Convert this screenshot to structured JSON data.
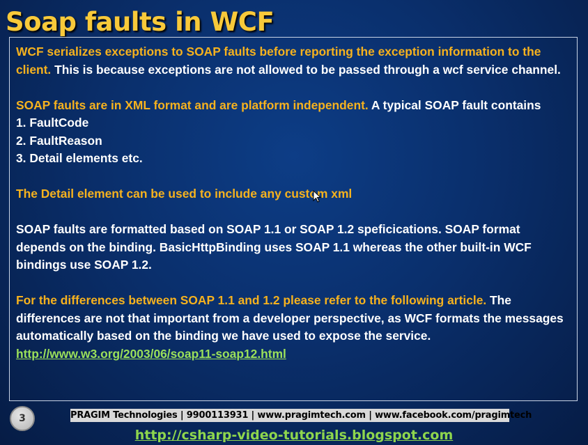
{
  "slide": {
    "title": "Soap faults in WCF",
    "page_number": "3"
  },
  "content": {
    "p1": {
      "highlight": "WCF serializes exceptions to SOAP faults before reporting the exception information to the client.",
      "text": " This is because exceptions are not allowed to be passed through a wcf service channel."
    },
    "p2": {
      "highlight": "SOAP faults are in XML format and are platform independent.",
      "text": " A typical SOAP fault contains",
      "list": [
        "1. FaultCode",
        "2. FaultReason",
        "3. Detail elements etc."
      ]
    },
    "p3": {
      "highlight": "The Detail element can be used to include any custom xml"
    },
    "p4": {
      "text": "SOAP faults are formatted based on SOAP 1.1 or SOAP 1.2 speficications. SOAP format depends on the binding. BasicHttpBinding uses SOAP 1.1 whereas the other built-in WCF bindings use SOAP 1.2."
    },
    "p5": {
      "highlight": "For the differences between SOAP 1.1 and 1.2 please refer to the following article.",
      "text": " The differences are not that important from a developer perspective, as WCF formats the messages automatically based on the binding we have used to expose the service.",
      "link": "http://www.w3.org/2003/06/soap11-soap12.html"
    }
  },
  "footer": {
    "bar": "PRAGIM Technologies | 9900113931 | www.pragimtech.com | www.facebook.com/pragimtech",
    "link": "http://csharp-video-tutorials.blogspot.com"
  },
  "colors": {
    "title": "#f8c93a",
    "highlight": "#f6b21e",
    "link": "#9be05a",
    "background": "#0a2f6c"
  }
}
